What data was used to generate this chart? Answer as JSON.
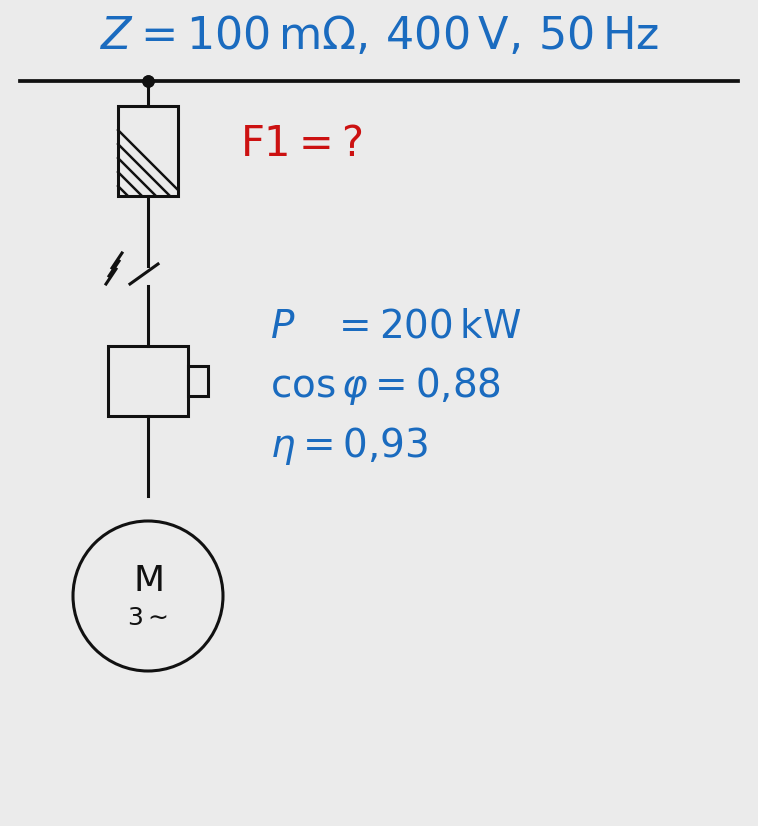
{
  "bg_color": "#ebebeb",
  "title_text": "$Z = 100\\, \\mathrm{m\\Omega},\\, 400\\, \\mathrm{V},\\, 50\\, \\mathrm{Hz}$",
  "title_color": "#1a6bbf",
  "title_fontsize": 32,
  "f1_label": "$\\mathrm{F1} = ?$",
  "f1_color": "#cc1111",
  "f1_fontsize": 30,
  "params_color": "#1a6bbf",
  "params_fontsize": 28,
  "param_P": "$P\\quad = 200\\, \\mathrm{kW}$",
  "param_cos": "$\\cos\\varphi = 0{,}88$",
  "param_eta": "$\\eta = 0{,}93$",
  "line_color": "#111111",
  "line_width": 2.2
}
